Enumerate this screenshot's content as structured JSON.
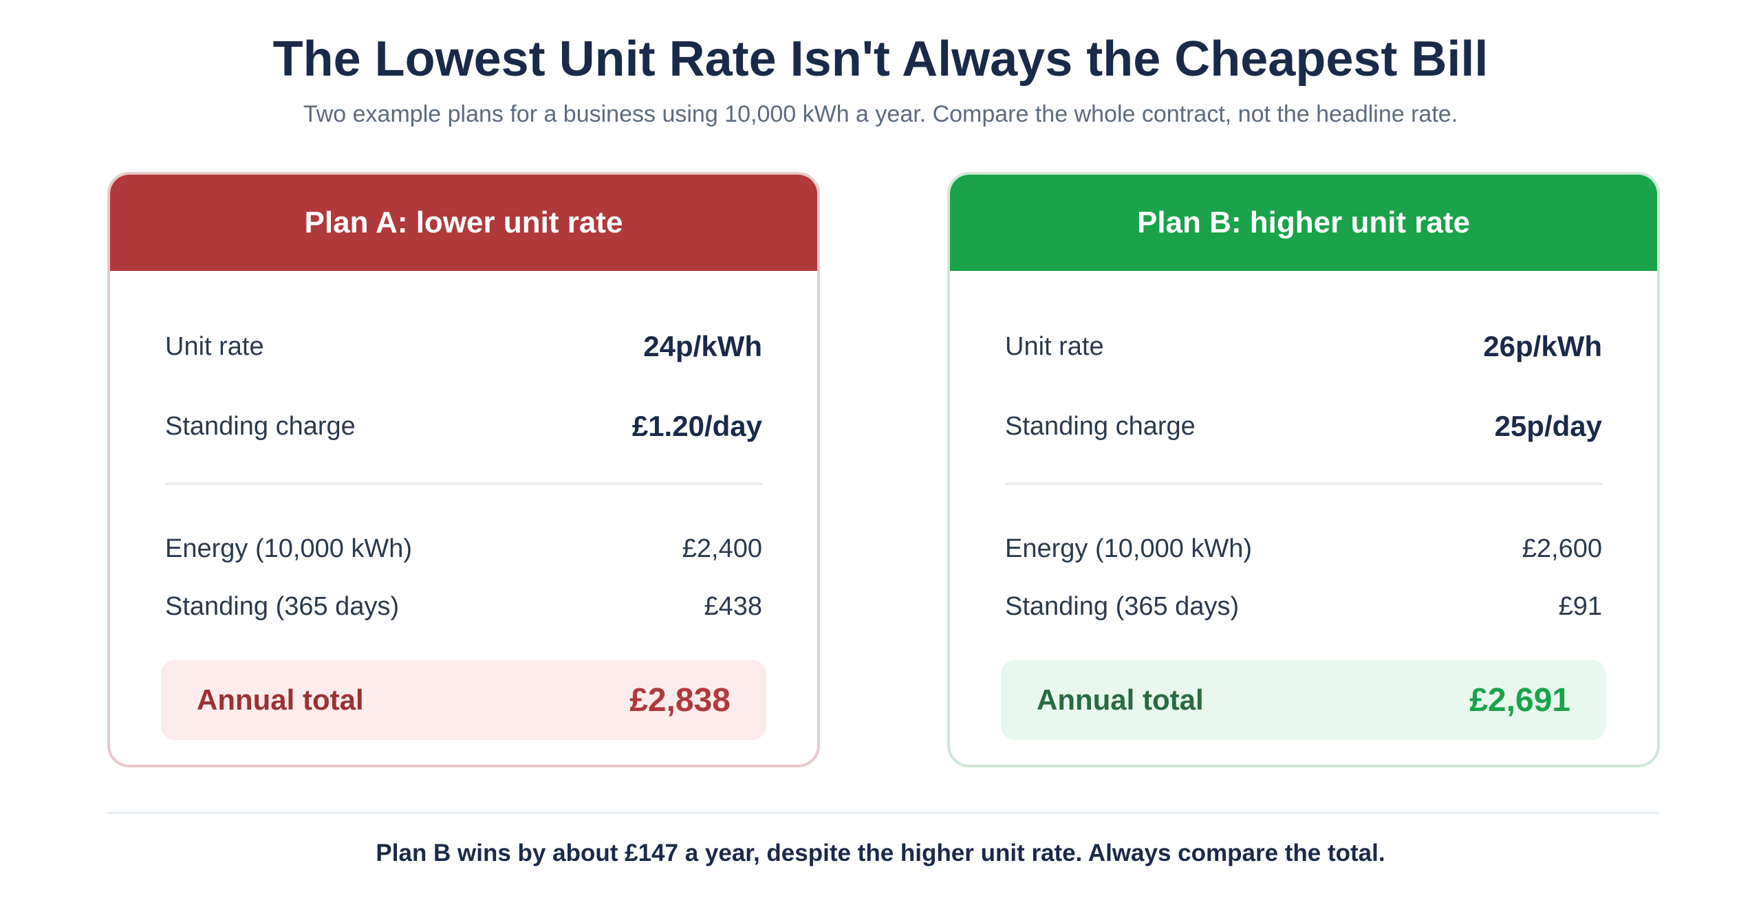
{
  "header": {
    "title": "The Lowest Unit Rate Isn't Always the Cheapest Bill",
    "subtitle": "Two example plans for a business using 10,000 kWh a year. Compare the whole contract, not the headline rate."
  },
  "plans": [
    {
      "title": "Plan A: lower unit rate",
      "unit_rate_label": "Unit rate",
      "unit_rate_value": "24p/kWh",
      "standing_label": "Standing charge",
      "standing_value": "£1.20/day",
      "energy_label": "Energy (10,000 kWh)",
      "energy_value": "£2,400",
      "standing_total_label": "Standing (365 days)",
      "standing_total_value": "£438",
      "total_label": "Annual total",
      "total_value": "£2,838",
      "accent_color": "#b0393c"
    },
    {
      "title": "Plan B: higher unit rate",
      "unit_rate_label": "Unit rate",
      "unit_rate_value": "26p/kWh",
      "standing_label": "Standing charge",
      "standing_value": "25p/day",
      "energy_label": "Energy (10,000 kWh)",
      "energy_value": "£2,600",
      "standing_total_label": "Standing (365 days)",
      "standing_total_value": "£91",
      "total_label": "Annual total",
      "total_value": "£2,691",
      "accent_color": "#1aa34a"
    }
  ],
  "footer": {
    "note": "Plan B wins by about £147 a year, despite the higher unit rate. Always compare the total."
  }
}
